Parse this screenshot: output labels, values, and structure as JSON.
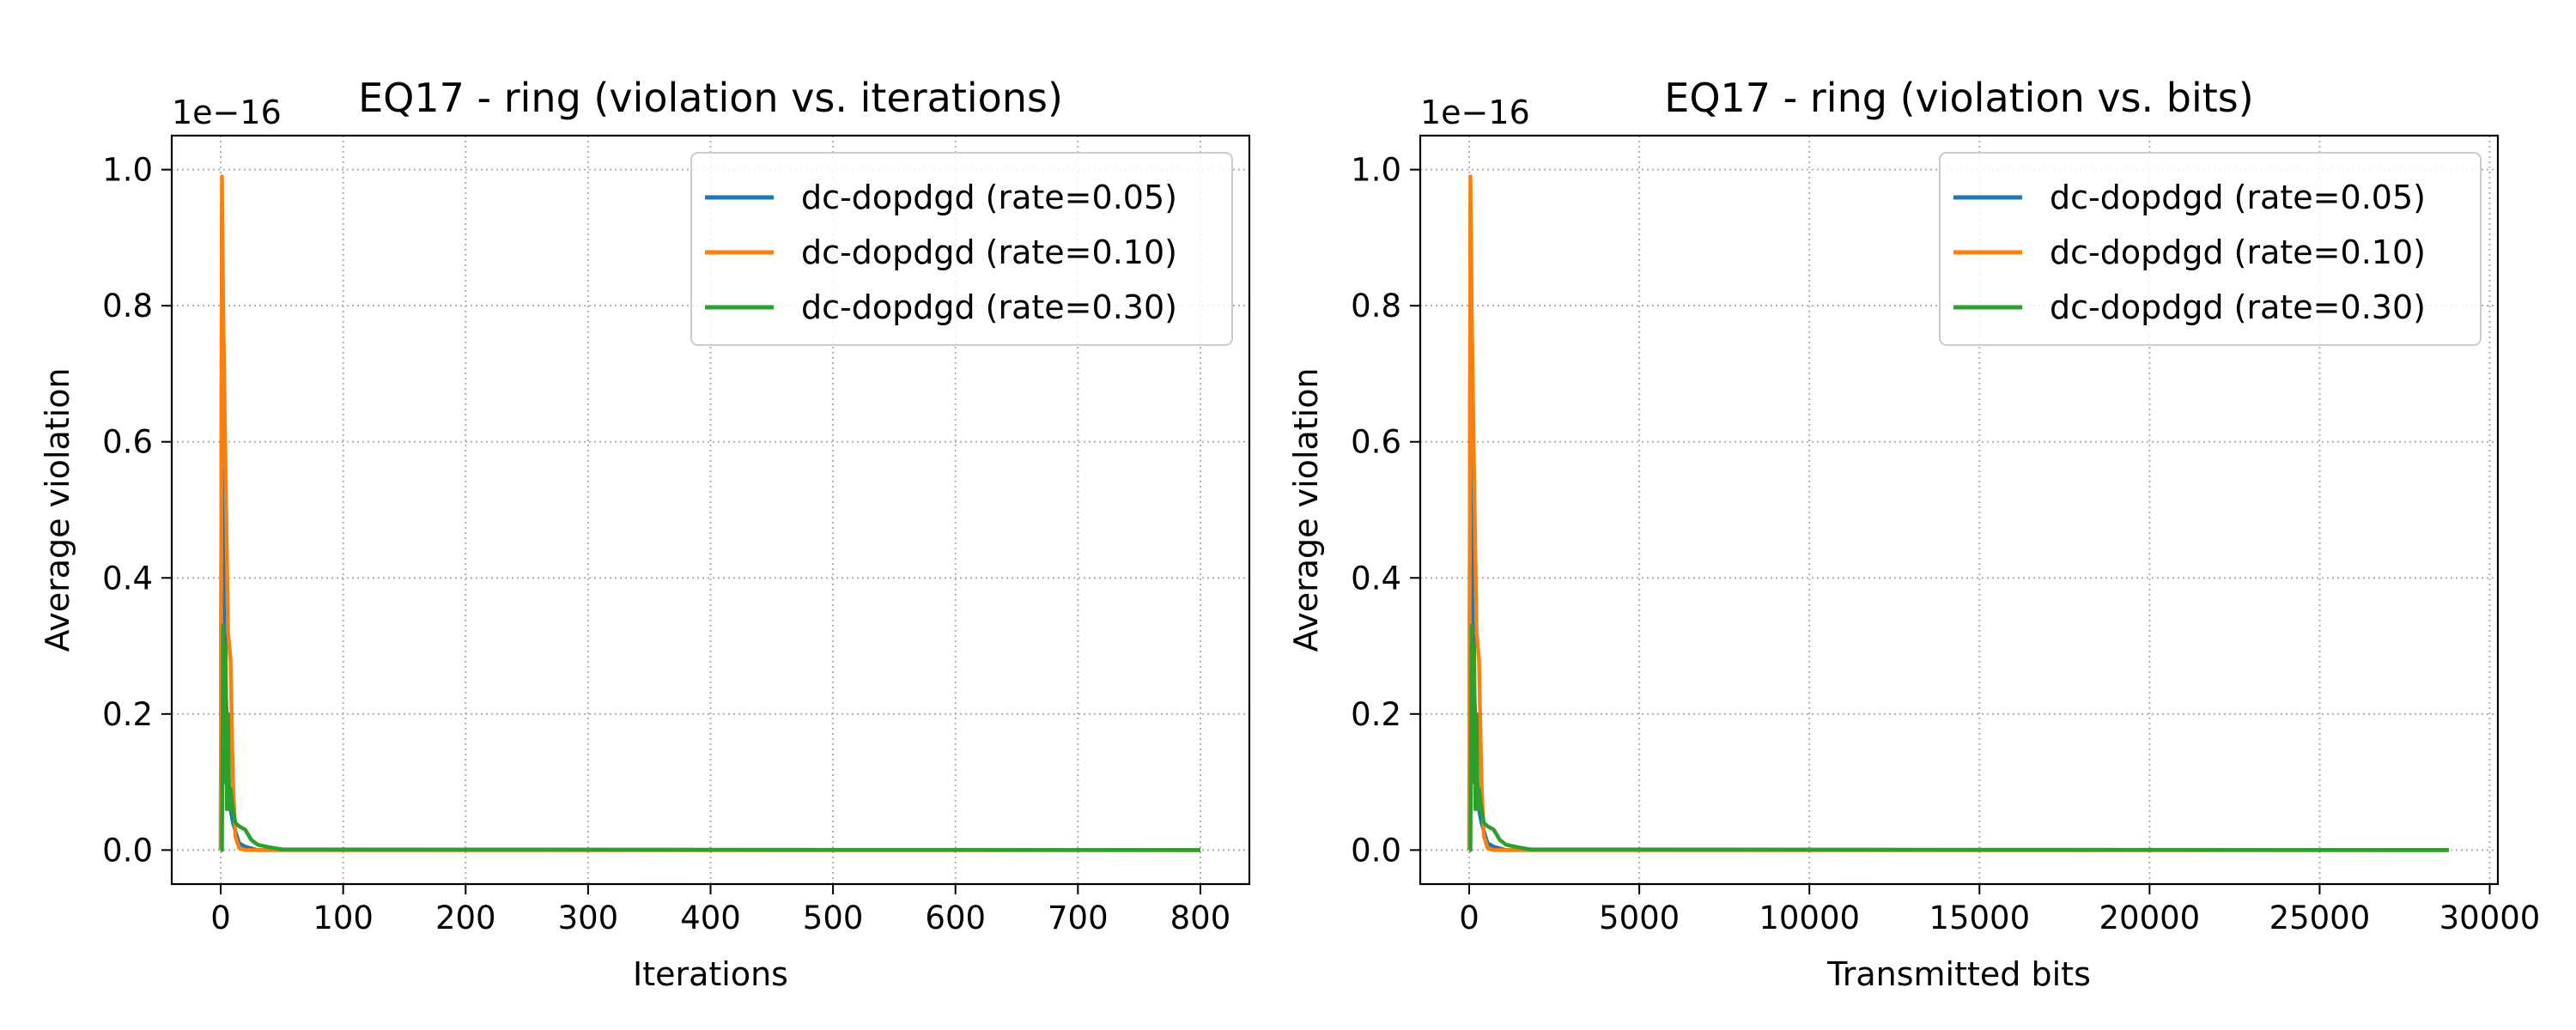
{
  "chart_data": [
    {
      "type": "line",
      "title": "EQ17 - ring (violation vs. iterations)",
      "xlabel": "Iterations",
      "ylabel": "Average violation",
      "y_offset_text": "1e−16",
      "xlim": [
        -40,
        840
      ],
      "ylim": [
        -0.05,
        1.05
      ],
      "xticks": [
        0,
        100,
        200,
        300,
        400,
        500,
        600,
        700,
        800
      ],
      "xtick_labels": [
        "0",
        "100",
        "200",
        "300",
        "400",
        "500",
        "600",
        "700",
        "800"
      ],
      "yticks": [
        0.0,
        0.2,
        0.4,
        0.6,
        0.8,
        1.0
      ],
      "ytick_labels": [
        "0.0",
        "0.2",
        "0.4",
        "0.6",
        "0.8",
        "1.0"
      ],
      "grid": true,
      "legend_position": "upper right",
      "series": [
        {
          "name": "dc-dopdgd (rate=0.05)",
          "color": "#1f77b4",
          "x": [
            0,
            1,
            2,
            4,
            6,
            8,
            10,
            15,
            20,
            30,
            50,
            100,
            800
          ],
          "y": [
            0.0,
            0.95,
            0.65,
            0.25,
            0.12,
            0.06,
            0.04,
            0.01,
            0.005,
            0.0,
            0.0,
            0.0,
            0.0
          ]
        },
        {
          "name": "dc-dopdgd (rate=0.10)",
          "color": "#ff7f0e",
          "x": [
            0,
            1,
            2,
            4,
            6,
            8,
            10,
            12,
            15,
            20,
            30,
            50,
            800
          ],
          "y": [
            0.0,
            0.99,
            0.8,
            0.55,
            0.32,
            0.28,
            0.1,
            0.02,
            0.003,
            0.0,
            0.0,
            0.0,
            0.0
          ]
        },
        {
          "name": "dc-dopdgd (rate=0.30)",
          "color": "#2ca02c",
          "x": [
            0,
            1,
            2,
            3,
            4,
            5,
            6,
            7,
            8,
            10,
            12,
            15,
            20,
            25,
            30,
            40,
            50,
            800
          ],
          "y": [
            0.0,
            0.0,
            0.33,
            0.1,
            0.3,
            0.06,
            0.2,
            0.06,
            0.09,
            0.06,
            0.04,
            0.035,
            0.03,
            0.015,
            0.008,
            0.004,
            0.001,
            0.0
          ]
        }
      ]
    },
    {
      "type": "line",
      "title": "EQ17 - ring (violation vs. bits)",
      "xlabel": "Transmitted bits",
      "ylabel": "Average violation",
      "y_offset_text": "1e−16",
      "xlim": [
        -1440,
        30240
      ],
      "ylim": [
        -0.05,
        1.05
      ],
      "xticks": [
        0,
        5000,
        10000,
        15000,
        20000,
        25000,
        30000
      ],
      "xtick_labels": [
        "0",
        "5000",
        "10000",
        "15000",
        "20000",
        "25000",
        "30000"
      ],
      "yticks": [
        0.0,
        0.2,
        0.4,
        0.6,
        0.8,
        1.0
      ],
      "ytick_labels": [
        "0.0",
        "0.2",
        "0.4",
        "0.6",
        "0.8",
        "1.0"
      ],
      "grid": true,
      "legend_position": "upper right",
      "series": [
        {
          "name": "dc-dopdgd (rate=0.05)",
          "color": "#1f77b4",
          "x": [
            0,
            36,
            72,
            144,
            216,
            288,
            360,
            540,
            720,
            1080,
            1800,
            3600,
            28800
          ],
          "y": [
            0.0,
            0.95,
            0.65,
            0.25,
            0.12,
            0.06,
            0.04,
            0.01,
            0.005,
            0.0,
            0.0,
            0.0,
            0.0
          ]
        },
        {
          "name": "dc-dopdgd (rate=0.10)",
          "color": "#ff7f0e",
          "x": [
            0,
            36,
            72,
            144,
            216,
            288,
            360,
            432,
            540,
            720,
            1080,
            1800,
            28800
          ],
          "y": [
            0.0,
            0.99,
            0.8,
            0.55,
            0.32,
            0.28,
            0.1,
            0.02,
            0.003,
            0.0,
            0.0,
            0.0,
            0.0
          ]
        },
        {
          "name": "dc-dopdgd (rate=0.30)",
          "color": "#2ca02c",
          "x": [
            0,
            36,
            72,
            108,
            144,
            180,
            216,
            252,
            288,
            360,
            432,
            540,
            720,
            900,
            1080,
            1440,
            1800,
            28800
          ],
          "y": [
            0.0,
            0.0,
            0.33,
            0.1,
            0.3,
            0.06,
            0.2,
            0.06,
            0.09,
            0.06,
            0.04,
            0.035,
            0.03,
            0.015,
            0.008,
            0.004,
            0.001,
            0.0
          ]
        }
      ]
    }
  ]
}
